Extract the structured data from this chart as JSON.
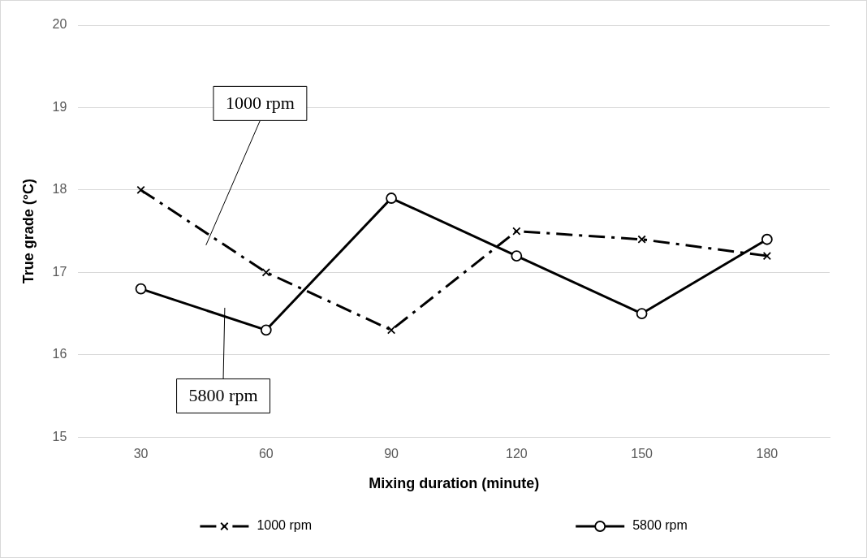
{
  "chart_data": {
    "type": "line",
    "xlabel": "Mixing duration (minute)",
    "ylabel": "True grade (°C)",
    "categories": [
      "30",
      "60",
      "90",
      "120",
      "150",
      "180"
    ],
    "series": [
      {
        "name": "1000 rpm",
        "color": "#000000",
        "values": [
          18,
          17,
          16.3,
          17.5,
          17.4,
          17.2
        ],
        "marker": "cross",
        "line_style": "dashed"
      },
      {
        "name": "5800 rpm",
        "color": "#000000",
        "values": [
          16.8,
          16.3,
          17.9,
          17.2,
          16.5,
          17.4
        ],
        "marker": "circle",
        "line_style": "solid"
      }
    ],
    "ylim": [
      15,
      20
    ],
    "yticks": [
      15,
      16,
      17,
      18,
      19,
      20
    ],
    "grid": "y",
    "legend": "bottom",
    "annotations": [
      "1000 rpm",
      "5800 rpm"
    ]
  }
}
